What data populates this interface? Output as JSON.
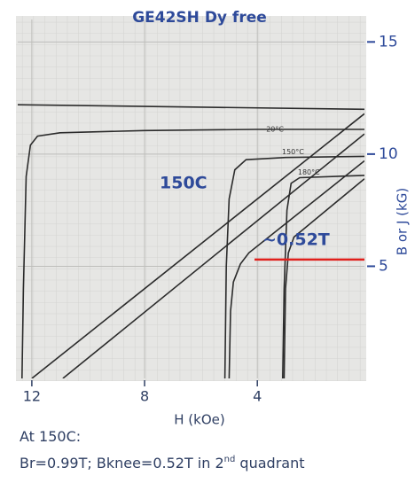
{
  "chart_data": {
    "type": "line",
    "title": "GE42SH Dy free",
    "x_label": "H (kOe)",
    "y_label": "B or J (kG)",
    "xlim": [
      12.5,
      0.2
    ],
    "ylim": [
      0,
      16
    ],
    "xticks": [
      12,
      8,
      4
    ],
    "yticks": [
      5,
      10,
      15
    ],
    "grid": true,
    "series": [
      {
        "color": "#2b2b2b",
        "x": [
          12.5,
          0.2
        ],
        "values": [
          12.2,
          12.0
        ]
      },
      {
        "name": "20°C",
        "color": "#2b2b2b",
        "x": [
          0.2,
          4,
          8,
          11,
          11.8,
          12.05,
          12.2,
          12.3,
          12.35
        ],
        "values": [
          11.1,
          11.1,
          11.05,
          10.95,
          10.8,
          10.4,
          9,
          4,
          0
        ]
      },
      {
        "color": "#2b2b2b",
        "x": [
          0.2,
          12.0
        ],
        "values": [
          11.8,
          0
        ]
      },
      {
        "color": "#2b2b2b",
        "x": [
          0.2,
          10.9
        ],
        "values": [
          10.9,
          0
        ]
      },
      {
        "name": "150°C",
        "color": "#2b2b2b",
        "x": [
          0.2,
          3,
          4.4,
          4.8,
          5.0,
          5.1,
          5.15
        ],
        "values": [
          9.9,
          9.85,
          9.75,
          9.3,
          8,
          5,
          0
        ]
      },
      {
        "color": "#2b2b2b",
        "x": [
          0.2,
          4.3,
          4.6,
          4.85,
          4.95,
          5.0
        ],
        "values": [
          9.7,
          5.6,
          5.1,
          4.3,
          3,
          0
        ]
      },
      {
        "name": "180°C",
        "color": "#2b2b2b",
        "x": [
          0.2,
          2.5,
          2.8,
          2.95,
          3.05,
          3.1
        ],
        "values": [
          9.05,
          8.95,
          8.7,
          7.5,
          4,
          0
        ]
      },
      {
        "color": "#2b2b2b",
        "x": [
          0.2,
          2.7,
          2.9,
          3.0,
          3.05
        ],
        "values": [
          8.9,
          6.3,
          5.6,
          4,
          0
        ]
      }
    ],
    "knee_line": {
      "x": [
        4.1,
        0.2
      ],
      "y": 5.3,
      "color": "#e0201c"
    },
    "annotations": [
      "150C",
      "~0.52T"
    ],
    "notes": {
      "line1": "At 150C:",
      "line2": [
        "Br=0.99T; Bknee=0.52T in 2",
        "nd",
        " quadrant"
      ]
    }
  }
}
